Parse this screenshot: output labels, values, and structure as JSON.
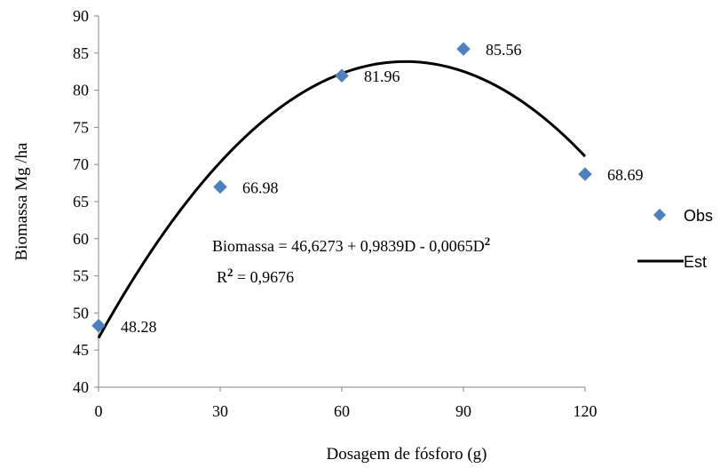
{
  "chart_data": {
    "type": "scatter",
    "xlabel": "Dosagem de fósforo (g)",
    "ylabel": "Biomassa Mg /ha",
    "xlim": [
      0,
      120
    ],
    "ylim": [
      40,
      90
    ],
    "x_ticks": [
      0,
      30,
      60,
      90,
      120
    ],
    "y_ticks": [
      40,
      45,
      50,
      55,
      60,
      65,
      70,
      75,
      80,
      85,
      90
    ],
    "grid": false,
    "legend_position": "right",
    "series": [
      {
        "name": "Obs",
        "kind": "markers",
        "marker": "diamond",
        "color": "#4F81BD",
        "x": [
          0,
          30,
          60,
          90,
          120
        ],
        "y": [
          48.28,
          66.98,
          81.96,
          85.56,
          68.69
        ],
        "labels": [
          "48.28",
          "66.98",
          "81.96",
          "85.56",
          "68.69"
        ]
      },
      {
        "name": "Est",
        "kind": "line",
        "color": "#000000",
        "equation": {
          "intercept": 46.6273,
          "linear": 0.9839,
          "quadratic": -0.0065
        }
      }
    ],
    "annotation": {
      "equation_text": "Biomassa = 46,6273 + 0,9839D - 0,0065D",
      "equation_sup": "2",
      "r2_prefix": "R",
      "r2_sup": "2",
      "r2_value": " = 0,9676"
    }
  }
}
